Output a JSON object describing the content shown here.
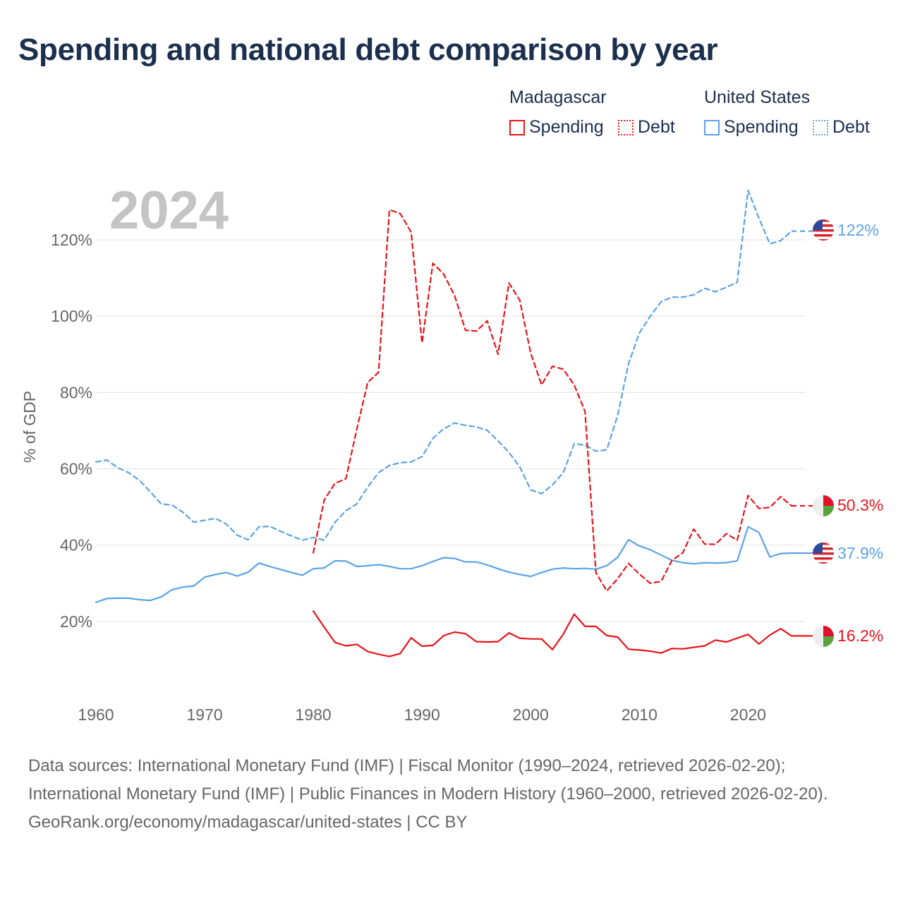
{
  "title": "Spending and national debt comparison by year",
  "legend": {
    "groups": [
      {
        "country": "Madagascar",
        "color": "#e8141a",
        "items": [
          {
            "label": "Spending",
            "style": "solid"
          },
          {
            "label": "Debt",
            "style": "dotted"
          }
        ]
      },
      {
        "country": "United States",
        "color": "#5aa3e6",
        "items": [
          {
            "label": "Spending",
            "style": "solid"
          },
          {
            "label": "Debt",
            "style": "dotted"
          }
        ]
      }
    ]
  },
  "year_watermark": "2024",
  "footer": {
    "sources": "Data sources: International Monetary Fund (IMF) | Fiscal Monitor (1990–2024, retrieved 2026-02-20); International Monetary Fund (IMF) | Public Finances in Modern History (1960–2000, retrieved 2026-02-20).",
    "credit": "GeoRank.org/economy/madagascar/united-states | CC BY"
  },
  "chart_data": {
    "type": "line",
    "title": "Spending and national debt comparison by year",
    "ylabel": "% of GDP",
    "xlabel": "",
    "xlim": [
      1960,
      2024
    ],
    "ylim": [
      0,
      130
    ],
    "x_ticks": [
      1960,
      1970,
      1980,
      1990,
      2000,
      2010,
      2020
    ],
    "y_ticks": [
      {
        "value": 20,
        "label": "20%"
      },
      {
        "value": 40,
        "label": "40%"
      },
      {
        "value": 60,
        "label": "60%"
      },
      {
        "value": 80,
        "label": "80%"
      },
      {
        "value": 100,
        "label": "100%"
      },
      {
        "value": 120,
        "label": "120%"
      }
    ],
    "grid": true,
    "series": [
      {
        "name": "United States Debt",
        "country": "United States",
        "metric": "Debt",
        "color": "#5aa3e6",
        "dash": "dashed",
        "end_label": "122%",
        "x": [
          1960,
          1961,
          1962,
          1963,
          1964,
          1965,
          1966,
          1967,
          1968,
          1969,
          1970,
          1971,
          1972,
          1973,
          1974,
          1975,
          1976,
          1977,
          1978,
          1979,
          1980,
          1981,
          1982,
          1983,
          1984,
          1985,
          1986,
          1987,
          1988,
          1989,
          1990,
          1991,
          1992,
          1993,
          1994,
          1995,
          1996,
          1997,
          1998,
          1999,
          2000,
          2001,
          2002,
          2003,
          2004,
          2005,
          2006,
          2007,
          2008,
          2009,
          2010,
          2011,
          2012,
          2013,
          2014,
          2015,
          2016,
          2017,
          2018,
          2019,
          2020,
          2021,
          2022,
          2023,
          2024
        ],
        "values": [
          61.8,
          62.3,
          60.3,
          59.0,
          57.0,
          54.0,
          50.8,
          50.5,
          48.6,
          46.0,
          46.5,
          47.0,
          45.5,
          42.6,
          41.4,
          44.8,
          44.9,
          43.6,
          42.4,
          41.3,
          42.0,
          41.3,
          46.0,
          49.0,
          50.8,
          55.2,
          59.0,
          60.9,
          61.6,
          61.8,
          63.2,
          68.0,
          70.5,
          72.0,
          71.4,
          71.0,
          70.1,
          67.3,
          64.3,
          60.5,
          54.5,
          53.5,
          55.8,
          59.0,
          66.6,
          66.2,
          64.6,
          65.0,
          74.0,
          87.5,
          95.6,
          100.0,
          103.8,
          105.0,
          105.0,
          105.6,
          107.3,
          106.4,
          107.6,
          108.9,
          133.0,
          125.7,
          119.0,
          119.8,
          122.3
        ]
      },
      {
        "name": "United States Spending",
        "country": "United States",
        "metric": "Spending",
        "color": "#5aa3e6",
        "dash": "solid",
        "end_label": "37.9%",
        "x": [
          1960,
          1961,
          1962,
          1963,
          1964,
          1965,
          1966,
          1967,
          1968,
          1969,
          1970,
          1971,
          1972,
          1973,
          1974,
          1975,
          1976,
          1977,
          1978,
          1979,
          1980,
          1981,
          1982,
          1983,
          1984,
          1985,
          1986,
          1987,
          1988,
          1989,
          1990,
          1991,
          1992,
          1993,
          1994,
          1995,
          1996,
          1997,
          1998,
          1999,
          2000,
          2001,
          2002,
          2003,
          2004,
          2005,
          2006,
          2007,
          2008,
          2009,
          2010,
          2011,
          2012,
          2013,
          2014,
          2015,
          2016,
          2017,
          2018,
          2019,
          2020,
          2021,
          2022,
          2023,
          2024
        ],
        "values": [
          25.0,
          26.0,
          26.1,
          26.1,
          25.7,
          25.5,
          26.4,
          28.3,
          29.0,
          29.3,
          31.6,
          32.3,
          32.8,
          31.9,
          32.9,
          35.3,
          34.4,
          33.6,
          32.8,
          32.1,
          33.8,
          34.0,
          35.9,
          35.8,
          34.4,
          34.6,
          34.9,
          34.4,
          33.8,
          33.8,
          34.6,
          35.7,
          36.7,
          36.5,
          35.6,
          35.6,
          34.8,
          33.8,
          32.9,
          32.3,
          31.8,
          32.8,
          33.7,
          34.0,
          33.8,
          33.9,
          33.7,
          34.6,
          36.8,
          41.4,
          39.8,
          38.8,
          37.4,
          36.0,
          35.4,
          35.1,
          35.4,
          35.3,
          35.4,
          35.9,
          44.8,
          43.3,
          36.9,
          37.8,
          37.9
        ]
      },
      {
        "name": "Madagascar Debt",
        "country": "Madagascar",
        "metric": "Debt",
        "color": "#e8141a",
        "dash": "dashed",
        "end_label": "50.3%",
        "x": [
          1980,
          1981,
          1982,
          1983,
          1984,
          1985,
          1986,
          1987,
          1988,
          1989,
          1990,
          1991,
          1992,
          1993,
          1994,
          1995,
          1996,
          1997,
          1998,
          1999,
          2000,
          2001,
          2002,
          2003,
          2004,
          2005,
          2006,
          2007,
          2008,
          2009,
          2010,
          2011,
          2012,
          2013,
          2014,
          2015,
          2016,
          2017,
          2018,
          2019,
          2020,
          2021,
          2022,
          2023,
          2024
        ],
        "values": [
          38.0,
          51.8,
          56.2,
          57.4,
          70.4,
          82.6,
          85.3,
          127.9,
          126.9,
          122.0,
          93.0,
          113.9,
          111.0,
          105.4,
          96.3,
          96.1,
          98.8,
          90.0,
          108.7,
          104.2,
          90.3,
          82.0,
          86.9,
          86.1,
          82.0,
          75.0,
          32.8,
          28.0,
          31.2,
          35.2,
          32.4,
          30.0,
          30.5,
          36.0,
          38.0,
          44.2,
          40.3,
          40.2,
          43.0,
          41.3,
          53.0,
          49.6,
          49.9,
          52.7,
          50.3
        ]
      },
      {
        "name": "Madagascar Spending",
        "country": "Madagascar",
        "metric": "Spending",
        "color": "#e8141a",
        "dash": "solid",
        "end_label": "16.2%",
        "x": [
          1980,
          1981,
          1982,
          1983,
          1984,
          1985,
          1986,
          1987,
          1988,
          1989,
          1990,
          1991,
          1992,
          1993,
          1994,
          1995,
          1996,
          1997,
          1998,
          1999,
          2000,
          2001,
          2002,
          2003,
          2004,
          2005,
          2006,
          2007,
          2008,
          2009,
          2010,
          2011,
          2012,
          2013,
          2014,
          2015,
          2016,
          2017,
          2018,
          2019,
          2020,
          2021,
          2022,
          2023,
          2024
        ],
        "values": [
          22.7,
          18.5,
          14.5,
          13.6,
          14.0,
          12.1,
          11.4,
          10.8,
          11.6,
          15.7,
          13.5,
          13.7,
          16.3,
          17.2,
          16.8,
          14.7,
          14.6,
          14.7,
          17.0,
          15.6,
          15.4,
          15.4,
          12.6,
          16.7,
          21.9,
          18.7,
          18.7,
          16.3,
          15.9,
          12.7,
          12.5,
          12.2,
          11.7,
          12.9,
          12.8,
          13.2,
          13.6,
          15.1,
          14.6,
          15.6,
          16.6,
          14.1,
          16.4,
          18.1,
          16.2
        ]
      }
    ]
  }
}
